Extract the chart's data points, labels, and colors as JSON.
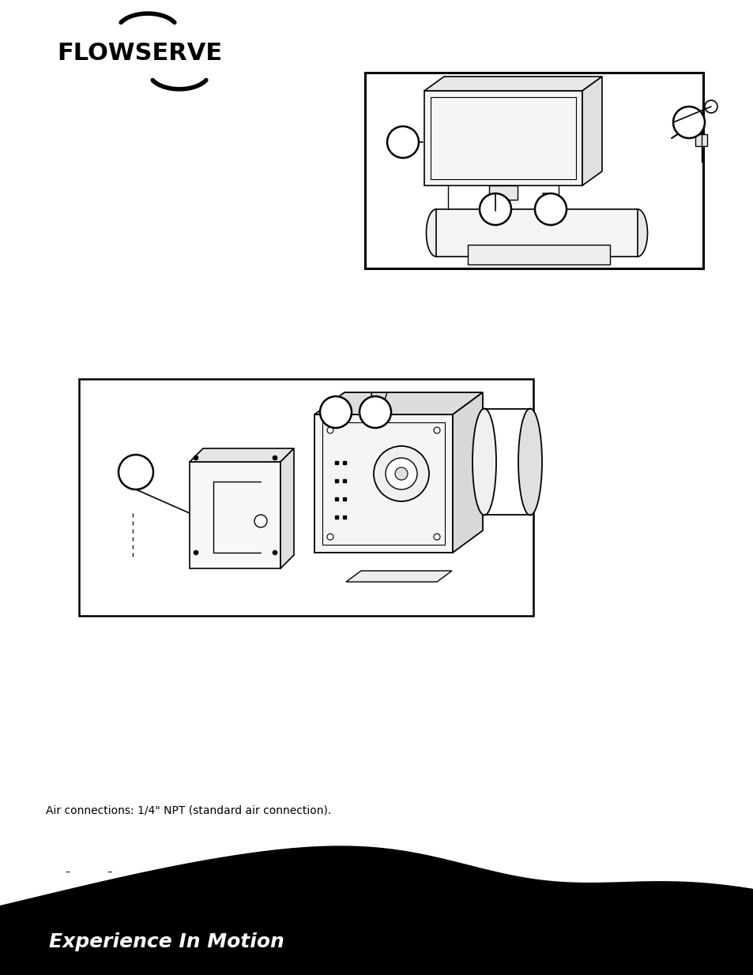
{
  "background_color": "#ffffff",
  "footer_text": "Experience In Motion",
  "air_connections_text": "Air connections: 1/4\" NPT (standard air connection).",
  "logo_text": "FLOWSERVE"
}
